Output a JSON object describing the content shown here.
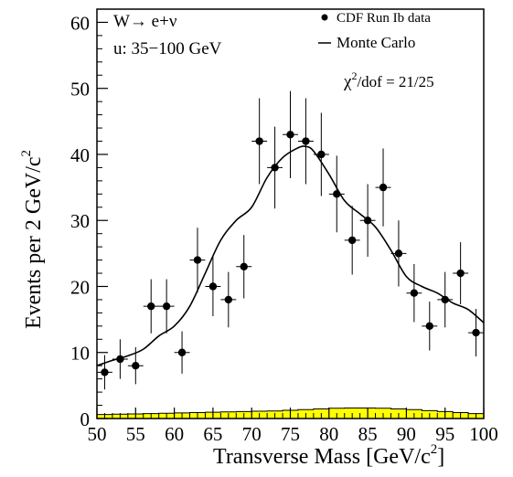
{
  "chart_data": {
    "type": "scatter",
    "xlabel": "Transverse Mass [GeV/c",
    "xlabel_sup": "2",
    "xlabel_end": "]",
    "ylabel": "Events per 2 GeV/c",
    "ylabel_sup": "2",
    "xlim": [
      50,
      100
    ],
    "ylim": [
      0,
      62
    ],
    "x_ticks": [
      50,
      55,
      60,
      65,
      70,
      75,
      80,
      85,
      90,
      95,
      100
    ],
    "y_ticks": [
      0,
      10,
      20,
      30,
      40,
      50,
      60
    ],
    "annotations": {
      "process": "W→ e+ν",
      "u_range": "u: 35−100 GeV",
      "chi2_symbol": "χ",
      "chi2_sup": "2",
      "chi2_rest": "/dof = 21/25"
    },
    "legend": {
      "position": "top-right",
      "data_label": "CDF Run Ib data",
      "mc_label": "Monte Carlo"
    },
    "series": [
      {
        "name": "CDF Run Ib data",
        "kind": "points-with-errors",
        "x": [
          51,
          53,
          55,
          57,
          59,
          61,
          63,
          65,
          67,
          69,
          71,
          73,
          75,
          77,
          79,
          81,
          83,
          85,
          87,
          89,
          91,
          93,
          95,
          97,
          99
        ],
        "y": [
          7,
          9,
          8,
          17,
          17,
          10,
          24,
          20,
          18,
          23,
          42,
          38,
          43,
          42,
          40,
          34,
          27,
          30,
          35,
          25,
          19,
          14,
          18,
          22,
          13
        ],
        "yerr": [
          2.6,
          3.0,
          2.8,
          4.1,
          4.1,
          3.2,
          4.9,
          4.5,
          4.2,
          4.8,
          6.5,
          6.2,
          6.6,
          6.5,
          6.3,
          5.8,
          5.2,
          5.5,
          5.9,
          5.0,
          4.4,
          3.7,
          4.2,
          4.7,
          3.6
        ],
        "xerr": 1
      },
      {
        "name": "Monte Carlo",
        "kind": "line",
        "x": [
          50,
          52,
          54,
          56,
          58,
          60,
          62,
          64,
          66,
          68,
          70,
          72,
          74,
          76,
          77,
          78,
          80,
          82,
          84,
          86,
          88,
          90,
          92,
          94,
          96,
          98,
          100
        ],
        "y": [
          8,
          8.8,
          9.5,
          10.5,
          12.5,
          14,
          17,
          22,
          27,
          30,
          32,
          36.5,
          39.5,
          41,
          41.2,
          40.5,
          37,
          33,
          31,
          29,
          25.5,
          21.5,
          20,
          19,
          17.5,
          16.5,
          14.5
        ]
      },
      {
        "kind": "background-histogram",
        "x": [
          50,
          52,
          54,
          56,
          58,
          60,
          62,
          64,
          66,
          68,
          70,
          72,
          74,
          76,
          78,
          80,
          82,
          84,
          86,
          88,
          90,
          92,
          94,
          96,
          98,
          100
        ],
        "y": [
          0.6,
          0.65,
          0.7,
          0.75,
          0.8,
          0.85,
          0.9,
          0.95,
          1.0,
          1.05,
          1.1,
          1.15,
          1.25,
          1.35,
          1.45,
          1.55,
          1.6,
          1.6,
          1.55,
          1.45,
          1.35,
          1.2,
          1.05,
          0.9,
          0.75,
          0.6
        ]
      }
    ],
    "colors": {
      "background_fill": "#ffff00",
      "background_line": "#000000"
    }
  }
}
